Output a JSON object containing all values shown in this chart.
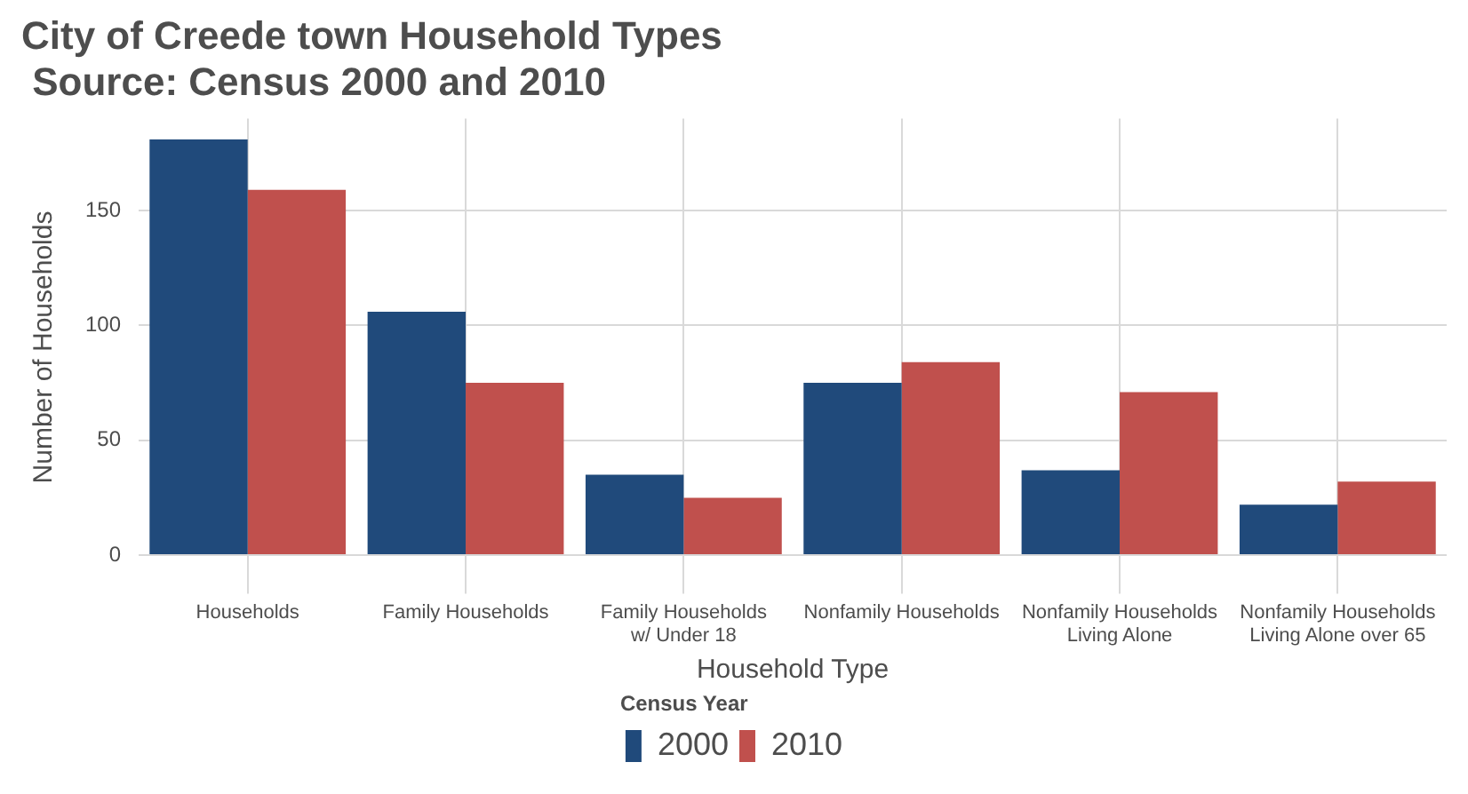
{
  "chart_data": {
    "type": "bar",
    "title": "City of Creede town Household Types\n Source: Census 2000 and 2010",
    "xlabel": "Household Type",
    "ylabel": "Number of Households",
    "legend_title": "Census Year",
    "categories": [
      "Households",
      "Family Households",
      "Family Households\nw/ Under 18",
      "Nonfamily Households",
      "Nonfamily Households\nLiving Alone",
      "Nonfamily Households\nLiving Alone over 65"
    ],
    "series": [
      {
        "name": "2000",
        "color": "#204a7b",
        "values": [
          181,
          106,
          35,
          75,
          37,
          22
        ]
      },
      {
        "name": "2010",
        "color": "#c0504d",
        "values": [
          159,
          75,
          25,
          84,
          71,
          32
        ]
      }
    ],
    "ylim": [
      -9,
      190
    ],
    "yticks": [
      0,
      50,
      100,
      150
    ],
    "grid": true,
    "legend": "bottom"
  }
}
